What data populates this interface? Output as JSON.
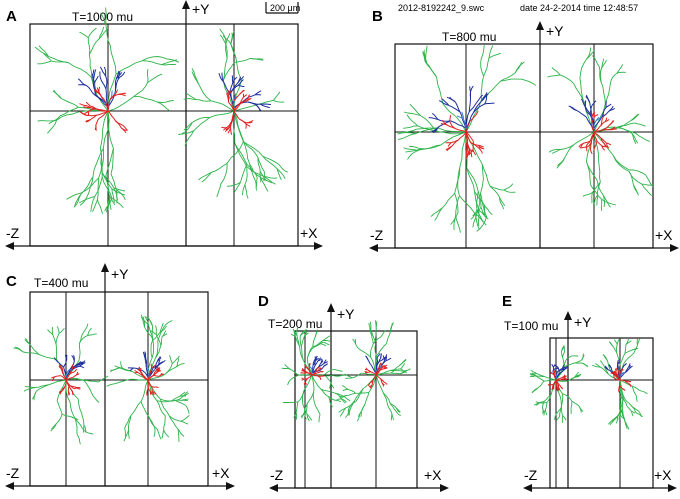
{
  "figure": {
    "file_name": "2012-8192242_9.swc",
    "date_stamp": "date 24-2-2014 time 12:48:57",
    "scale_bar_label": "200 μm",
    "colors": {
      "frame": "#111111",
      "axon": "#2db34a",
      "apical": "#1f2f9e",
      "apical_tip": "#3b7dd8",
      "basal": "#e02020"
    },
    "panels": [
      {
        "id": "A",
        "threshold": "T=1000 mu",
        "y_axis": "+Y",
        "z_axis": "-Z",
        "x_axis": "+X"
      },
      {
        "id": "B",
        "threshold": "T=800 mu",
        "y_axis": "+Y",
        "z_axis": "-Z",
        "x_axis": "+X"
      },
      {
        "id": "C",
        "threshold": "T=400 mu",
        "y_axis": "+Y",
        "z_axis": "-Z",
        "x_axis": "+X"
      },
      {
        "id": "D",
        "threshold": "T=200 mu",
        "y_axis": "+Y",
        "z_axis": "-Z",
        "x_axis": "+X"
      },
      {
        "id": "E",
        "threshold": "T=100 mu",
        "y_axis": "+Y",
        "z_axis": "-Z",
        "x_axis": "+X"
      }
    ]
  }
}
